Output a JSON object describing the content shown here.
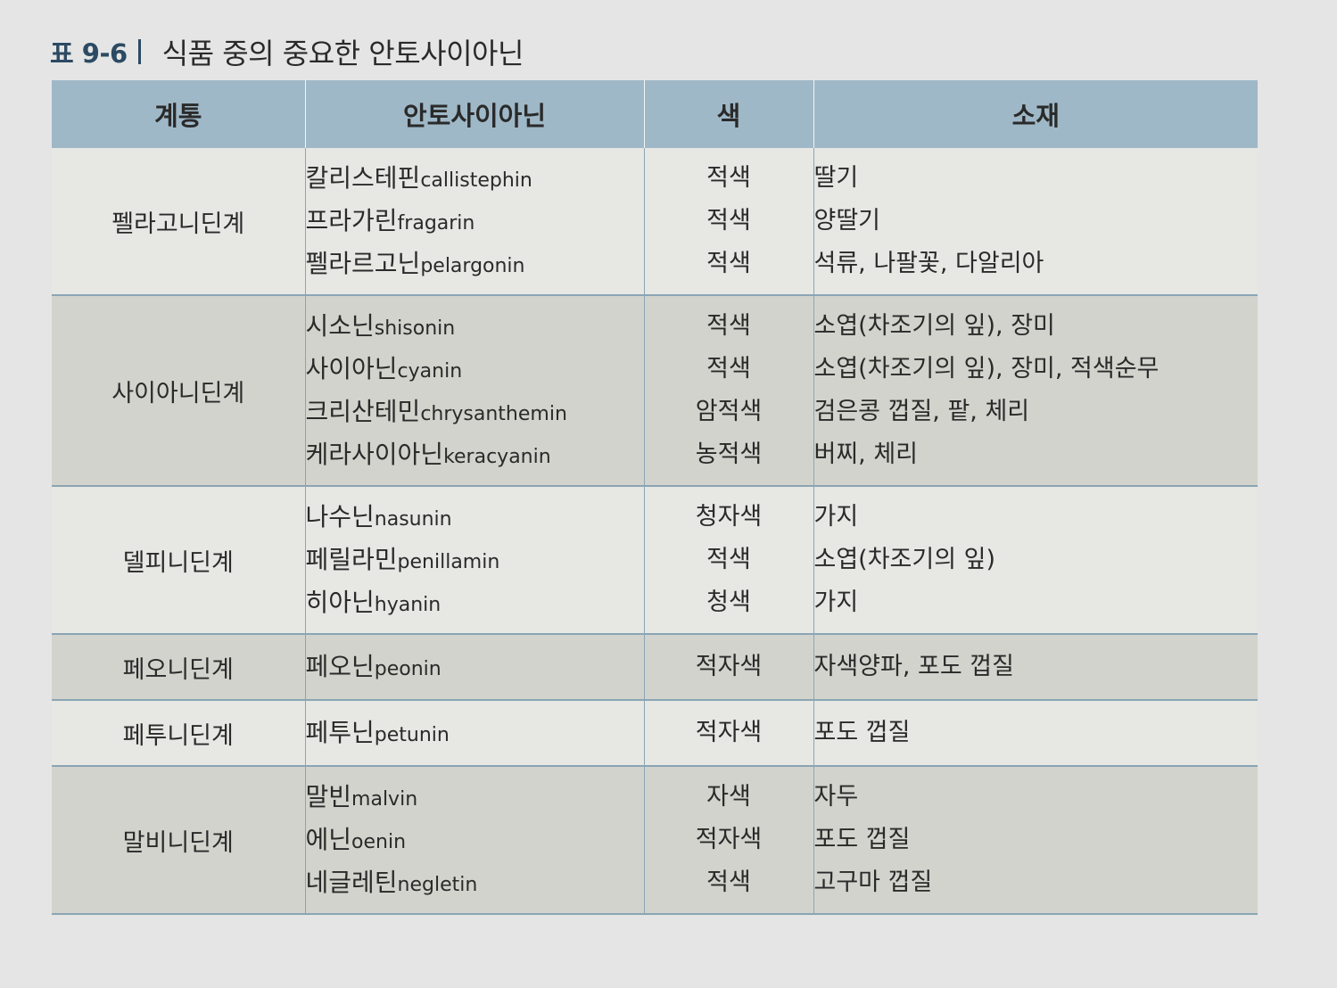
{
  "caption": {
    "label": "표 9-6",
    "title": "식품 중의 중요한 안토사이아닌"
  },
  "table": {
    "headers": [
      "계통",
      "안토사이아닌",
      "색",
      "소재"
    ],
    "groups": [
      {
        "family": "펠라고니딘계",
        "shade": "light",
        "rows": [
          {
            "name_kr": "칼리스테핀",
            "name_en": "callistephin",
            "color": "적색",
            "source": "딸기"
          },
          {
            "name_kr": "프라가린",
            "name_en": "fragarin",
            "color": "적색",
            "source": "양딸기"
          },
          {
            "name_kr": "펠라르고닌",
            "name_en": "pelargonin",
            "color": "적색",
            "source": "석류, 나팔꽃, 다알리아"
          }
        ]
      },
      {
        "family": "사이아니딘계",
        "shade": "dark",
        "rows": [
          {
            "name_kr": "시소닌",
            "name_en": "shisonin",
            "color": "적색",
            "source": "소엽(차조기의 잎), 장미"
          },
          {
            "name_kr": "사이아닌",
            "name_en": "cyanin",
            "color": "적색",
            "source": "소엽(차조기의 잎), 장미, 적색순무"
          },
          {
            "name_kr": "크리산테민",
            "name_en": "chrysanthemin",
            "color": "암적색",
            "source": "검은콩 껍질, 팥, 체리"
          },
          {
            "name_kr": "케라사이아닌",
            "name_en": "keracyanin",
            "color": "농적색",
            "source": "버찌, 체리"
          }
        ]
      },
      {
        "family": "델피니딘계",
        "shade": "light",
        "rows": [
          {
            "name_kr": "나수닌",
            "name_en": "nasunin",
            "color": "청자색",
            "source": "가지"
          },
          {
            "name_kr": "페릴라민",
            "name_en": "penillamin",
            "color": "적색",
            "source": "소엽(차조기의 잎)"
          },
          {
            "name_kr": "히아닌",
            "name_en": "hyanin",
            "color": "청색",
            "source": "가지"
          }
        ]
      },
      {
        "family": "페오니딘계",
        "shade": "dark",
        "rows": [
          {
            "name_kr": "페오닌",
            "name_en": "peonin",
            "color": "적자색",
            "source": "자색양파, 포도 껍질"
          }
        ]
      },
      {
        "family": "페투니딘계",
        "shade": "light",
        "rows": [
          {
            "name_kr": "페투닌",
            "name_en": "petunin",
            "color": "적자색",
            "source": "포도 껍질"
          }
        ]
      },
      {
        "family": "말비니딘계",
        "shade": "dark",
        "rows": [
          {
            "name_kr": "말빈",
            "name_en": "malvin",
            "color": "자색",
            "source": "자두"
          },
          {
            "name_kr": "에닌",
            "name_en": "oenin",
            "color": "적자색",
            "source": "포도 껍질"
          },
          {
            "name_kr": "네글레틴",
            "name_en": "negletin",
            "color": "적색",
            "source": "고구마 껍질"
          }
        ]
      }
    ]
  }
}
